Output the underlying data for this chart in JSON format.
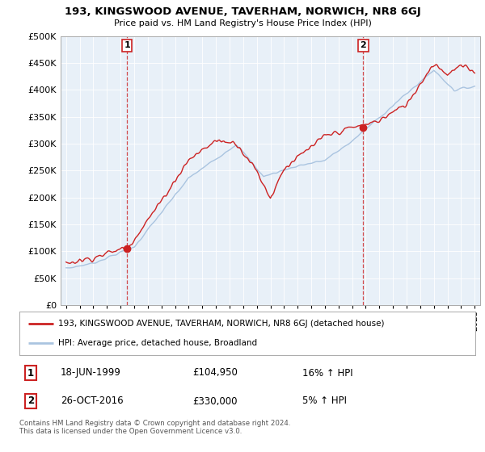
{
  "title": "193, KINGSWOOD AVENUE, TAVERHAM, NORWICH, NR8 6GJ",
  "subtitle": "Price paid vs. HM Land Registry's House Price Index (HPI)",
  "legend_line1": "193, KINGSWOOD AVENUE, TAVERHAM, NORWICH, NR8 6GJ (detached house)",
  "legend_line2": "HPI: Average price, detached house, Broadland",
  "sale1_date": "18-JUN-1999",
  "sale1_price": "£104,950",
  "sale1_hpi": "16% ↑ HPI",
  "sale2_date": "26-OCT-2016",
  "sale2_price": "£330,000",
  "sale2_hpi": "5% ↑ HPI",
  "copyright": "Contains HM Land Registry data © Crown copyright and database right 2024.\nThis data is licensed under the Open Government Licence v3.0.",
  "hpi_color": "#aac4e0",
  "price_color": "#cc2222",
  "sale_marker_color": "#cc2222",
  "sale1_x": 1999.47,
  "sale1_y": 104950,
  "sale2_x": 2016.82,
  "sale2_y": 330000,
  "ylim_min": 0,
  "ylim_max": 500000,
  "xlim_min": 1994.6,
  "xlim_max": 2025.4,
  "yticks": [
    0,
    50000,
    100000,
    150000,
    200000,
    250000,
    300000,
    350000,
    400000,
    450000,
    500000
  ],
  "chart_bg": "#e8f0f8",
  "background_color": "#ffffff",
  "grid_color": "#ffffff"
}
